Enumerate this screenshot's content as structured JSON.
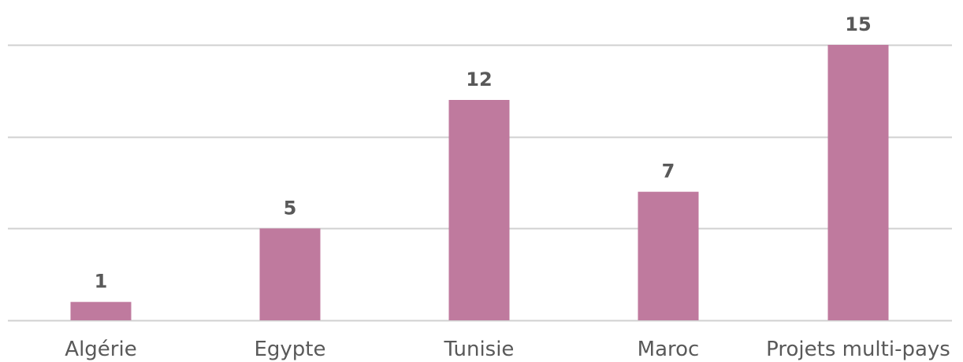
{
  "chart_data": {
    "type": "bar",
    "categories": [
      "Algérie",
      "Egypte",
      "Tunisie",
      "Maroc",
      "Projets multi-pays"
    ],
    "values": [
      1,
      5,
      12,
      7,
      15
    ],
    "title": "",
    "xlabel": "",
    "ylabel": "",
    "ylim": [
      0,
      15
    ],
    "y_gridlines": [
      0,
      5,
      10,
      15
    ],
    "grid": true,
    "legend": "none",
    "bar_color": "#bf7a9e",
    "label_color": "#595959",
    "gridline_color": "#d0d0d0"
  }
}
